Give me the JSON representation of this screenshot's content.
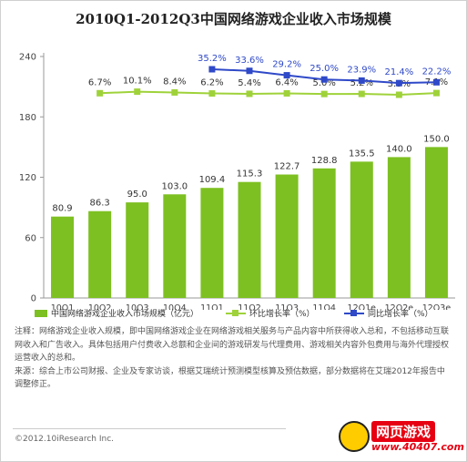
{
  "title": "2010Q1-2012Q3中国网络游戏企业收入市场规模",
  "chart_data": {
    "type": "bar",
    "categories": [
      "10Q1",
      "10Q2",
      "10Q3",
      "10Q4",
      "11Q1",
      "11Q2",
      "11Q3",
      "11Q4",
      "12Q1e",
      "12Q2e",
      "12Q3e"
    ],
    "ylim": [
      0,
      240
    ],
    "yticks": [
      0,
      60,
      120,
      180,
      240
    ],
    "series": [
      {
        "name": "中国网络游戏企业收入市场规模（亿元）",
        "type": "bar",
        "color": "#7dc021",
        "values": [
          80.9,
          86.3,
          95.0,
          103.0,
          109.4,
          115.3,
          122.7,
          128.8,
          135.5,
          140.0,
          150.0
        ],
        "labels": [
          "80.9",
          "86.3",
          "95.0",
          "103.0",
          "109.4",
          "115.3",
          "122.7",
          "128.8",
          "135.5",
          "140.0",
          "150.0"
        ]
      },
      {
        "name": "环比增长率（%）",
        "type": "line",
        "color": "#9fd23a",
        "values": [
          null,
          6.7,
          10.1,
          8.4,
          6.2,
          5.4,
          6.4,
          5.0,
          5.2,
          3.3,
          7.1
        ],
        "labels": [
          "",
          "6.7%",
          "10.1%",
          "8.4%",
          "6.2%",
          "5.4%",
          "6.4%",
          "5.0%",
          "5.2%",
          "3.3%",
          "7.1%"
        ]
      },
      {
        "name": "同比增长率（%）",
        "type": "line",
        "color": "#2f49c8",
        "values": [
          null,
          null,
          null,
          null,
          35.2,
          33.6,
          29.2,
          25.0,
          23.9,
          21.4,
          22.2
        ],
        "labels": [
          "",
          "",
          "",
          "",
          "35.2%",
          "33.6%",
          "29.2%",
          "25.0%",
          "23.9%",
          "21.4%",
          "22.2%"
        ]
      }
    ]
  },
  "notes": [
    "注释：网络游戏企业收入规模，即中国网络游戏企业在网络游戏相关服务与产品内容中所获得收入总和，不包括移动互联网收入和广告收入。具体包括用户付费收入总额和企业间的游戏研发与代理费用、游戏相关内容外包费用与海外代理授权运营收入的总和。",
    "来源：综合上市公司财报、企业及专家访谈，根据艾瑞统计预测模型核算及预估数据，部分数据将在艾瑞2012年报告中调整修正。"
  ],
  "copyright": "©2012.10iResearch Inc.",
  "watermark": {
    "text": "网页游戏",
    "url": "www.40407.com"
  }
}
